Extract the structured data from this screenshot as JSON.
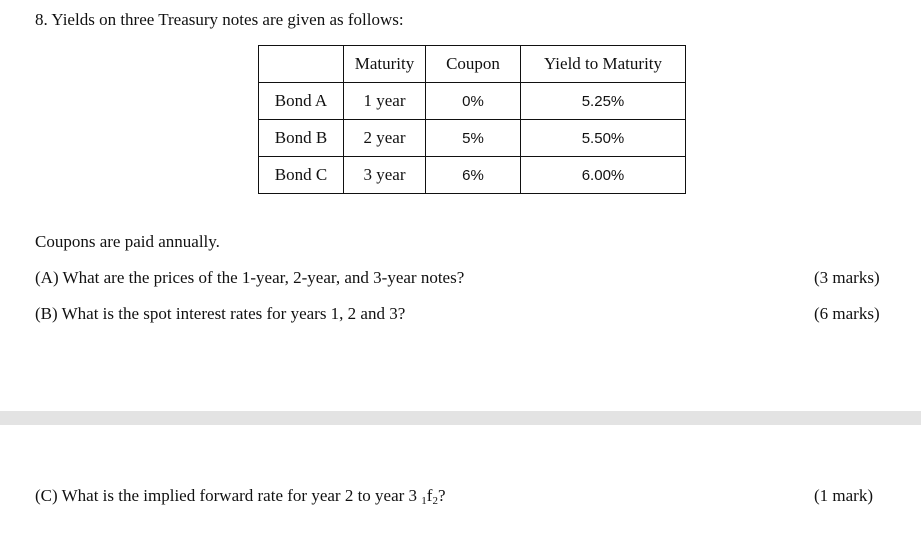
{
  "question": {
    "title": "8. Yields on three Treasury notes are given as follows:"
  },
  "table": {
    "headers": [
      "",
      "Maturity",
      "Coupon",
      "Yield to Maturity"
    ],
    "rows": [
      [
        "Bond A",
        "1 year",
        "0%",
        "5.25%"
      ],
      [
        "Bond B",
        "2 year",
        "5%",
        "5.50%"
      ],
      [
        "Bond C",
        "3 year",
        "6%",
        "6.00%"
      ]
    ]
  },
  "note": "Coupons are paid annually.",
  "parts": {
    "a": {
      "text": "(A) What are the prices of the 1-year, 2-year, and 3-year notes?",
      "marks": "(3 marks)"
    },
    "b": {
      "text": "(B) What is the spot interest rates for years 1, 2 and 3?",
      "marks": "(6 marks)"
    },
    "c": {
      "text_before": "(C) What is the implied forward rate for year 2 to year 3 ",
      "sub_pre": "1",
      "symbol": "f",
      "sub_post": "2",
      "text_after": "?",
      "marks": "(1 mark)"
    }
  },
  "colors": {
    "text": "#111111",
    "page_break": "#e3e3e3",
    "background": "#ffffff"
  }
}
